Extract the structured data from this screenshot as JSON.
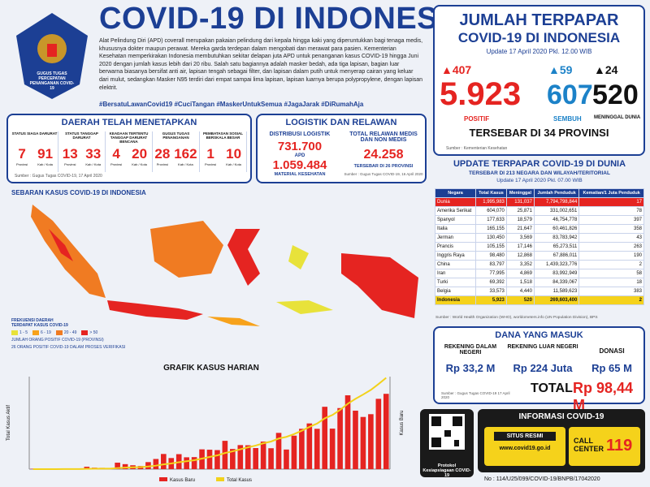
{
  "header": {
    "title": "COVID-19 DI INDONESIA",
    "logo": "GUGUS TUGAS PERCEPATAN PENANGANAN COVID-19",
    "intro": "Alat Pelindung Diri (APD) coverall merupakan pakaian pelindung dari kepala hingga kaki yang diperuntukkan bagi tenaga medis, khususnya dokter maupun perawat. Mereka garda terdepan dalam mengobati dan merawat para pasien. Kementerian Kesehatan memperkirakan Indonesia membutuhkan sekitar delapan juta APD untuk penanganan kasus COVID-19 hingga Juni 2020 dengan jumlah kasus lebih dari 20 ribu. Salah satu bagiannya adalah masker bedah, ada tiga lapisan, bagian luar berwarna biasanya bersifat anti air, lapisan tengah sebagai filter, dan lapisan dalam putih untuk menyerap cairan yang keluar dari mulut, sedangkan Masker N95 terdiri dari empat sampai lima lapisan, lapisan luarnya berupa polypropylene, dengan lapisan elektrit.",
    "hashtags": "#BersatuLawanCovid19  #CuciTangan  #MaskerUntukSemua  #JagaJarak  #DiRumahAja"
  },
  "summary": {
    "title1": "JUMLAH TERPAPAR",
    "title2": "COVID-19 DI INDONESIA",
    "update": "Update 17 April 2020 Pkl. 12.00 WIB",
    "positive": {
      "new": "407",
      "total": "5.923",
      "label": "POSITIF"
    },
    "recovered": {
      "new": "59",
      "total": "607",
      "label": "SEMBUH"
    },
    "deaths": {
      "new": "24",
      "total": "520",
      "label": "MENINGGAL DUNIA"
    },
    "provinces": "TERSEBAR DI 34 PROVINSI",
    "source": "Sumber : Kementerian Kesehatan"
  },
  "regions": {
    "title": "DAERAH TELAH MENETAPKAN",
    "items": [
      {
        "label": "STATUS SIAGA DARURAT",
        "a": "7",
        "a_unit": "Provinsi",
        "b": "91",
        "b_unit": "Kab / Kota"
      },
      {
        "label": "STATUS TANGGAP DARURAT",
        "a": "13",
        "a_unit": "Provinsi",
        "b": "33",
        "b_unit": "Kab / Kota"
      },
      {
        "label": "KEADAAN TERTENTU TANGGAP DARURAT BENCANA",
        "a": "4",
        "a_unit": "Provinsi",
        "b": "20",
        "b_unit": "Kab / Kota"
      },
      {
        "label": "GUGUS TUGAS PENANGANAN",
        "a": "28",
        "a_unit": "Provinsi",
        "b": "162",
        "b_unit": "Kab / Kota"
      },
      {
        "label": "PEMBATASAN SOSIAL BERSKALA BESAR",
        "a": "1",
        "a_unit": "Provinsi",
        "b": "10",
        "b_unit": "Kab / Kota"
      }
    ],
    "source": "Sumber : Gugus Tugas COVID-19, 17 April 2020"
  },
  "logistics": {
    "title": "LOGISTIK DAN RELAWAN",
    "dist_label": "DISTRIBUSI LOGISTIK",
    "apd": "731.700",
    "apd_label": "APD",
    "material": "1.059.484",
    "material_label": "MATERIAL KESEHATAN",
    "vol_label": "TOTAL RELAWAN MEDIS DAN NON MEDIS",
    "volunteers": "24.258",
    "vol_spread": "TERSEBAR DI 26 PROVINSI",
    "source": "Sumber : Gugus Tugas COVID-19, 16 April 2020"
  },
  "map": {
    "title": "SEBARAN KASUS COVID-19 DI INDONESIA",
    "legend_title": "FREKUENSI DAERAH TERDAPAT KASUS COVID-19",
    "legend": [
      {
        "label": "1 - 5",
        "color": "#e8e23a"
      },
      {
        "label": "6 - 19",
        "color": "#f7a21b"
      },
      {
        "label": "20 - 49",
        "color": "#f07b22"
      },
      {
        "label": "> 50",
        "color": "#e52421"
      }
    ],
    "note1": "JUMLAH ORANG POSITIF COVID-19 (PROVINSI)",
    "note2": "26 ORANG POSITIF COVID-19 DALAM PROSES VERIFIKASI"
  },
  "chart_data": {
    "type": "bar",
    "title": "GRAFIK KASUS HARIAN",
    "ylabel": "Total Kasus Aktif",
    "y2label": "Kasus Baru",
    "ylim": [
      0,
      6000
    ],
    "y2lim": [
      0,
      500
    ],
    "series": [
      {
        "name": "Kasus Baru",
        "color": "#e52421",
        "axis": "y2",
        "values": [
          2,
          0,
          0,
          0,
          2,
          0,
          2,
          13,
          8,
          7,
          0,
          35,
          27,
          21,
          17,
          38,
          55,
          82,
          60,
          81,
          64,
          65,
          107,
          105,
          103,
          153,
          109,
          130,
          129,
          114,
          149,
          113,
          196,
          106,
          181,
          218,
          247,
          218,
          337,
          219,
          330,
          399,
          316,
          282,
          297,
          380,
          407
        ]
      },
      {
        "name": "Total Kasus",
        "color": "#f2d21b",
        "values": [
          2,
          2,
          2,
          2,
          4,
          4,
          6,
          19,
          27,
          34,
          34,
          69,
          96,
          117,
          134,
          172,
          227,
          309,
          369,
          450,
          514,
          579,
          686,
          790,
          893,
          1046,
          1155,
          1285,
          1414,
          1528,
          1677,
          1790,
          1986,
          2092,
          2273,
          2491,
          2738,
          2956,
          3293,
          3512,
          3842,
          4241,
          4557,
          4839,
          5136,
          5516,
          5923
        ]
      }
    ]
  },
  "world": {
    "title": "UPDATE TERPAPAR COVID-19 DI DUNIA",
    "subtitle": "TERSEBAR DI 213 NEGARA DAN WILAYAH/TERITORIAL",
    "update": "Update 17 April 2020 Pkl. 07.00 WIB",
    "headers": [
      "Negara",
      "Total Kasus",
      "Meninggal",
      "Jumlah Penduduk",
      "Kematian/1 Juta Penduduk"
    ],
    "rows": [
      [
        "Dunia",
        "1,995,983",
        "131,037",
        "7,794,798,844",
        "17"
      ],
      [
        "Amerika Serikat",
        "604,070",
        "25,871",
        "331,002,651",
        "78"
      ],
      [
        "Spanyol",
        "177,633",
        "18,579",
        "46,754,778",
        "397"
      ],
      [
        "Italia",
        "165,155",
        "21,647",
        "60,461,826",
        "358"
      ],
      [
        "Jerman",
        "130,450",
        "3,569",
        "83,783,942",
        "43"
      ],
      [
        "Prancis",
        "105,155",
        "17,146",
        "65,273,511",
        "263"
      ],
      [
        "Inggris Raya",
        "98,480",
        "12,868",
        "67,886,011",
        "190"
      ],
      [
        "China",
        "83,797",
        "3,352",
        "1,439,323,776",
        "2"
      ],
      [
        "Iran",
        "77,995",
        "4,869",
        "83,992,949",
        "58"
      ],
      [
        "Turki",
        "69,392",
        "1,518",
        "84,339,067",
        "18"
      ],
      [
        "Belgia",
        "33,573",
        "4,440",
        "11,589,623",
        "383"
      ],
      [
        "Indonesia",
        "5,923",
        "520",
        "269,603,400",
        "2"
      ]
    ],
    "source": "Sumber : World Health Organization (WHO), worldometers.info (UN Population Division), BPS"
  },
  "funds": {
    "title": "DANA YANG MASUK",
    "domestic_label": "REKENING DALAM NEGERI",
    "domestic": "Rp 33,2 M",
    "foreign_label": "REKENING LUAR NEGERI",
    "foreign": "Rp 224 Juta",
    "donation_label": "DONASI",
    "donation": "Rp 65 M",
    "total_label": "TOTAL",
    "total": "Rp 98,44 M",
    "source": "Sumber : Gugus Tugas COVID-19 17 April 2020"
  },
  "info": {
    "title": "INFORMASI COVID-19",
    "qr_label": "Protokol Kesiapsiagaan COVID-19",
    "site_label": "SITUS RESMI",
    "site": "www.covid19.go.id",
    "call": "CALL CENTER",
    "call_no": "119"
  },
  "footer": "No : 114/U25/099/COVID-19/BNPB/17042020"
}
